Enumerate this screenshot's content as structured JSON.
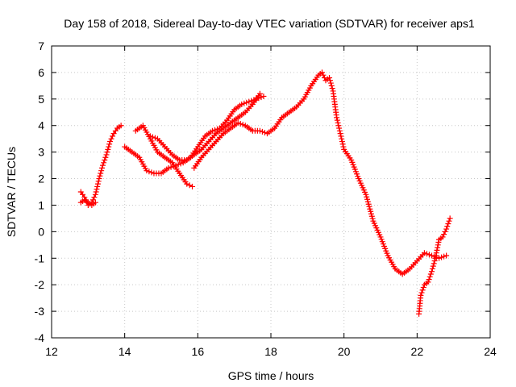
{
  "chart_data": {
    "type": "scatter",
    "title": "Day 158 of 2018, Sidereal Day-to-day VTEC variation (SDTVAR) for receiver aps1",
    "xlabel": "GPS time / hours",
    "ylabel": "SDTVAR / TECUs",
    "xlim": [
      12,
      24
    ],
    "ylim": [
      -4,
      7
    ],
    "xticks": [
      "12",
      "14",
      "16",
      "18",
      "20",
      "22",
      "24"
    ],
    "yticks": [
      "-4",
      "-3",
      "-2",
      "-1",
      "0",
      "1",
      "2",
      "3",
      "4",
      "5",
      "6",
      "7"
    ],
    "grid": true,
    "marker": "+",
    "color": "#ff0000",
    "series": [
      {
        "x": [
          12.8,
          12.9,
          13.0,
          13.1,
          13.2,
          13.3,
          13.4,
          13.5,
          13.6,
          13.7,
          13.8,
          13.9
        ],
        "y": [
          1.5,
          1.3,
          1.0,
          1.1,
          1.4,
          2.0,
          2.5,
          2.9,
          3.4,
          3.7,
          3.9,
          4.0
        ]
      },
      {
        "x": [
          12.8,
          12.9,
          13.0,
          13.1,
          13.2
        ],
        "y": [
          1.1,
          1.2,
          1.1,
          1.0,
          1.1
        ]
      },
      {
        "x": [
          14.0,
          14.2,
          14.4,
          14.6,
          14.8,
          15.0,
          15.2,
          15.4,
          15.6,
          15.8,
          16.0,
          16.2,
          16.4,
          16.6,
          16.8,
          17.0,
          17.2,
          17.4,
          17.6,
          17.8
        ],
        "y": [
          3.2,
          3.0,
          2.8,
          2.3,
          2.2,
          2.2,
          2.4,
          2.5,
          2.6,
          2.8,
          3.2,
          3.6,
          3.8,
          3.9,
          4.2,
          4.6,
          4.8,
          4.9,
          5.0,
          5.1
        ]
      },
      {
        "x": [
          14.3,
          14.5,
          14.7,
          14.9,
          15.1,
          15.3,
          15.5,
          15.7,
          15.85
        ],
        "y": [
          3.8,
          4.0,
          3.5,
          3.0,
          2.8,
          2.6,
          2.2,
          1.8,
          1.7
        ]
      },
      {
        "x": [
          14.7,
          14.9,
          15.1,
          15.3,
          15.5,
          15.7,
          15.9,
          16.1,
          16.3,
          16.5,
          16.7,
          16.9,
          17.1,
          17.3,
          17.5,
          17.7
        ],
        "y": [
          3.6,
          3.5,
          3.2,
          2.9,
          2.7,
          2.7,
          2.9,
          3.1,
          3.4,
          3.7,
          3.9,
          4.1,
          4.3,
          4.5,
          4.8,
          5.2
        ]
      },
      {
        "x": [
          15.9,
          16.1,
          16.3,
          16.5,
          16.7,
          16.9,
          17.1,
          17.3,
          17.5,
          17.7,
          17.9,
          18.1,
          18.3,
          18.5,
          18.7,
          18.9,
          19.1,
          19.3,
          19.4,
          19.5,
          19.6,
          19.7,
          19.8,
          19.9,
          20.0,
          20.2,
          20.4,
          20.6,
          20.8,
          21.0,
          21.2,
          21.4,
          21.6,
          21.8,
          22.0,
          22.2,
          22.4,
          22.6,
          22.8
        ],
        "y": [
          2.4,
          2.8,
          3.1,
          3.4,
          3.7,
          3.9,
          4.1,
          4.0,
          3.8,
          3.8,
          3.7,
          3.9,
          4.3,
          4.5,
          4.7,
          5.0,
          5.5,
          5.9,
          6.0,
          5.7,
          5.8,
          5.3,
          4.3,
          3.7,
          3.1,
          2.7,
          2.0,
          1.4,
          0.4,
          -0.2,
          -0.9,
          -1.4,
          -1.6,
          -1.4,
          -1.1,
          -0.8,
          -0.9,
          -1.0,
          -0.9
        ]
      },
      {
        "x": [
          22.05,
          22.1,
          22.2,
          22.3,
          22.4,
          22.5,
          22.6,
          22.7,
          22.8,
          22.9
        ],
        "y": [
          -3.1,
          -2.4,
          -2.0,
          -1.9,
          -1.5,
          -1.0,
          -0.3,
          -0.2,
          0.1,
          0.5
        ]
      }
    ]
  }
}
